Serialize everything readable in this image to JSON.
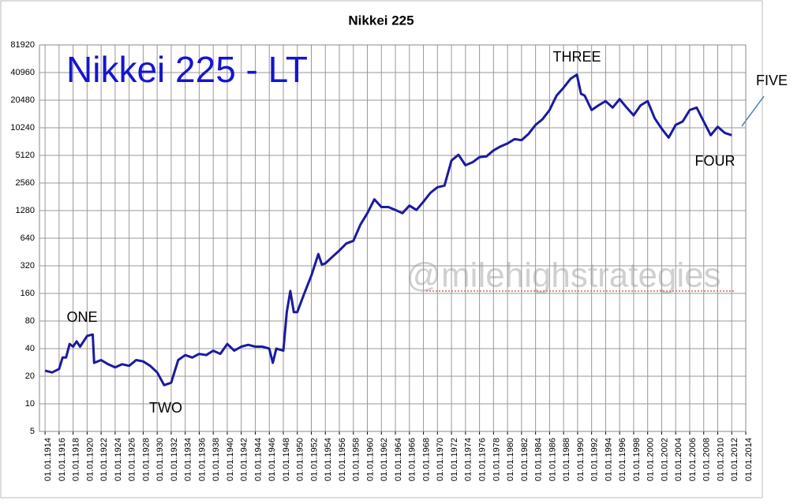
{
  "chart_data": {
    "type": "line",
    "title": "Nikkei 225",
    "annotations": {
      "label": "Nikkei 225 - LT",
      "waves": [
        "ONE",
        "TWO",
        "THREE",
        "FOUR",
        "FIVE"
      ],
      "watermark": "@milehighstrategies"
    },
    "log_scale": "y",
    "grid": true,
    "xlim": [
      1913.2,
      2014
    ],
    "xticks": [
      {
        "value": 1914,
        "label": "01.01.1914"
      },
      {
        "value": 1916,
        "label": "01.01.1916"
      },
      {
        "value": 1918,
        "label": "01.01.1918"
      },
      {
        "value": 1920,
        "label": "01.01.1920"
      },
      {
        "value": 1922,
        "label": "01.01.1922"
      },
      {
        "value": 1924,
        "label": "01.01.1924"
      },
      {
        "value": 1926,
        "label": "01.01.1926"
      },
      {
        "value": 1928,
        "label": "01.01.1928"
      },
      {
        "value": 1930,
        "label": "01.01.1930"
      },
      {
        "value": 1932,
        "label": "01.01.1932"
      },
      {
        "value": 1934,
        "label": "01.01.1934"
      },
      {
        "value": 1936,
        "label": "01.01.1936"
      },
      {
        "value": 1938,
        "label": "01.01.1938"
      },
      {
        "value": 1940,
        "label": "01.01.1940"
      },
      {
        "value": 1942,
        "label": "01.01.1942"
      },
      {
        "value": 1944,
        "label": "01.01.1944"
      },
      {
        "value": 1946,
        "label": "01.01.1946"
      },
      {
        "value": 1948,
        "label": "01.01.1948"
      },
      {
        "value": 1950,
        "label": "01.01.1950"
      },
      {
        "value": 1952,
        "label": "01.01.1952"
      },
      {
        "value": 1954,
        "label": "01.01.1954"
      },
      {
        "value": 1956,
        "label": "01.01.1956"
      },
      {
        "value": 1958,
        "label": "01.01.1958"
      },
      {
        "value": 1960,
        "label": "01.01.1960"
      },
      {
        "value": 1962,
        "label": "01.01.1962"
      },
      {
        "value": 1964,
        "label": "01.01.1964"
      },
      {
        "value": 1966,
        "label": "01.01.1966"
      },
      {
        "value": 1968,
        "label": "01.01.1968"
      },
      {
        "value": 1970,
        "label": "01.01.1970"
      },
      {
        "value": 1972,
        "label": "01.01.1972"
      },
      {
        "value": 1974,
        "label": "01.01.1974"
      },
      {
        "value": 1976,
        "label": "01.01.1976"
      },
      {
        "value": 1978,
        "label": "01.01.1978"
      },
      {
        "value": 1980,
        "label": "01.01.1980"
      },
      {
        "value": 1982,
        "label": "01.01.1982"
      },
      {
        "value": 1984,
        "label": "01.01.1984"
      },
      {
        "value": 1986,
        "label": "01.01.1986"
      },
      {
        "value": 1988,
        "label": "01.01.1988"
      },
      {
        "value": 1990,
        "label": "01.01.1990"
      },
      {
        "value": 1992,
        "label": "01.01.1992"
      },
      {
        "value": 1994,
        "label": "01.01.1994"
      },
      {
        "value": 1996,
        "label": "01.01.1996"
      },
      {
        "value": 1998,
        "label": "01.01.1998"
      },
      {
        "value": 2000,
        "label": "01.01.2000"
      },
      {
        "value": 2002,
        "label": "01.01.2002"
      },
      {
        "value": 2004,
        "label": "01.01.2004"
      },
      {
        "value": 2006,
        "label": "01.01.2006"
      },
      {
        "value": 2008,
        "label": "01.01.2008"
      },
      {
        "value": 2010,
        "label": "01.01.2010"
      },
      {
        "value": 2012,
        "label": "01.01.2012"
      },
      {
        "value": 2014,
        "label": "01.01.2014"
      }
    ],
    "ylim": [
      5,
      81920
    ],
    "yticks": [
      5,
      10,
      20,
      40,
      80,
      160,
      320,
      640,
      1280,
      2560,
      5120,
      10240,
      20480,
      40960,
      81920
    ],
    "color": "#1a1aa0",
    "x": [
      1914,
      1915,
      1916,
      1916.5,
      1917,
      1917.5,
      1918,
      1918.5,
      1919,
      1920,
      1920.8,
      1921,
      1922,
      1923,
      1924,
      1925,
      1926,
      1927,
      1928,
      1929,
      1930,
      1931,
      1932,
      1933,
      1934,
      1935,
      1936,
      1937,
      1938,
      1939,
      1940,
      1941,
      1942,
      1943,
      1944,
      1945,
      1946,
      1946.5,
      1947,
      1948,
      1948.5,
      1949,
      1949.5,
      1950,
      1951,
      1952,
      1953,
      1953.5,
      1954,
      1955,
      1956,
      1957,
      1958,
      1959,
      1960,
      1961,
      1962,
      1963,
      1964,
      1965,
      1966,
      1967,
      1968,
      1969,
      1970,
      1971,
      1972,
      1973,
      1974,
      1975,
      1976,
      1977,
      1978,
      1979,
      1980,
      1981,
      1982,
      1983,
      1984,
      1985,
      1986,
      1987,
      1988,
      1989,
      1989.9,
      1990.5,
      1991,
      1992,
      1993,
      1994,
      1995,
      1996,
      1997,
      1998,
      1999,
      2000,
      2001,
      2002,
      2003,
      2004,
      2005,
      2006,
      2007,
      2008,
      2009,
      2010,
      2011,
      2012
    ],
    "values": [
      23,
      22,
      24,
      32,
      32,
      45,
      42,
      48,
      42,
      55,
      57,
      28,
      30,
      27,
      25,
      27,
      26,
      30,
      29,
      26,
      22,
      16,
      17,
      30,
      34,
      32,
      35,
      34,
      38,
      35,
      45,
      38,
      42,
      44,
      42,
      42,
      40,
      28,
      40,
      38,
      100,
      170,
      100,
      100,
      160,
      250,
      430,
      330,
      340,
      400,
      470,
      560,
      600,
      900,
      1200,
      1700,
      1400,
      1400,
      1300,
      1200,
      1450,
      1300,
      1600,
      2000,
      2300,
      2400,
      4500,
      5200,
      4000,
      4300,
      4900,
      5000,
      5800,
      6400,
      6900,
      7700,
      7500,
      8800,
      11000,
      12700,
      16000,
      23000,
      28000,
      35000,
      38900,
      24000,
      23000,
      16000,
      18000,
      20000,
      17000,
      21000,
      17000,
      14000,
      18000,
      20000,
      13000,
      10000,
      8000,
      11000,
      12000,
      16000,
      17000,
      12000,
      8500,
      10500,
      9000,
      8500
    ]
  }
}
